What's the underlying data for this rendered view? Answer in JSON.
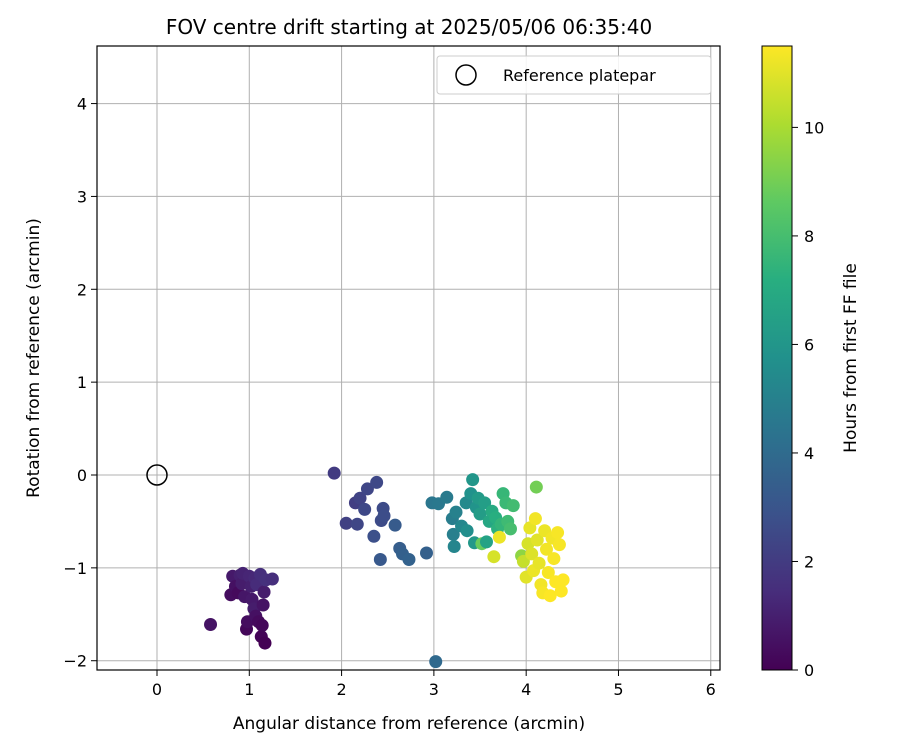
{
  "chart_data": {
    "type": "scatter",
    "title": "FOV centre drift starting at 2025/05/06 06:35:40",
    "xlabel": "Angular distance from reference (arcmin)",
    "ylabel": "Rotation from reference (arcmin)",
    "colorbar_label": "Hours from first FF file",
    "colormap": "viridis",
    "xlim": [
      -0.65,
      6.1
    ],
    "ylim": [
      -2.1,
      4.62
    ],
    "xticks": [
      "0",
      "1",
      "2",
      "3",
      "4",
      "5",
      "6"
    ],
    "yticks": [
      "−2",
      "−1",
      "0",
      "1",
      "2",
      "3",
      "4"
    ],
    "colorbar_range": [
      0,
      11.5
    ],
    "colorbar_ticks": [
      "0",
      "2",
      "4",
      "6",
      "8",
      "10"
    ],
    "grid": true,
    "legend": {
      "placement": "upper-right",
      "entries": [
        {
          "label": "Reference platepar",
          "marker": "open-circle",
          "color": "#000000"
        }
      ]
    },
    "reference_point": {
      "x": 0,
      "y": 0
    },
    "points": [
      {
        "x": 0.58,
        "y": -1.61,
        "t": 0.6
      },
      {
        "x": 0.8,
        "y": -1.29,
        "t": 0.4
      },
      {
        "x": 0.82,
        "y": -1.09,
        "t": 0.8
      },
      {
        "x": 0.85,
        "y": -1.2,
        "t": 0.5
      },
      {
        "x": 0.88,
        "y": -1.27,
        "t": 0.3
      },
      {
        "x": 0.9,
        "y": -1.08,
        "t": 1.0
      },
      {
        "x": 0.92,
        "y": -1.17,
        "t": 0.9
      },
      {
        "x": 0.93,
        "y": -1.06,
        "t": 1.1
      },
      {
        "x": 0.95,
        "y": -1.31,
        "t": 0.7
      },
      {
        "x": 0.97,
        "y": -1.66,
        "t": 0.2
      },
      {
        "x": 0.98,
        "y": -1.58,
        "t": 0.4
      },
      {
        "x": 1.0,
        "y": -1.09,
        "t": 1.2
      },
      {
        "x": 1.02,
        "y": -1.2,
        "t": 1.0
      },
      {
        "x": 1.03,
        "y": -1.34,
        "t": 0.8
      },
      {
        "x": 1.05,
        "y": -1.44,
        "t": 0.9
      },
      {
        "x": 1.06,
        "y": -1.11,
        "t": 1.3
      },
      {
        "x": 1.07,
        "y": -1.52,
        "t": 0.5
      },
      {
        "x": 1.08,
        "y": -1.18,
        "t": 1.4
      },
      {
        "x": 1.1,
        "y": -1.58,
        "t": 0.3
      },
      {
        "x": 1.12,
        "y": -1.07,
        "t": 1.5
      },
      {
        "x": 1.13,
        "y": -1.74,
        "t": 0.1
      },
      {
        "x": 1.14,
        "y": -1.62,
        "t": 0.2
      },
      {
        "x": 1.15,
        "y": -1.4,
        "t": 0.6
      },
      {
        "x": 1.16,
        "y": -1.26,
        "t": 0.9
      },
      {
        "x": 1.17,
        "y": -1.81,
        "t": 0.0
      },
      {
        "x": 1.18,
        "y": -1.13,
        "t": 1.6
      },
      {
        "x": 1.25,
        "y": -1.12,
        "t": 1.5
      },
      {
        "x": 1.92,
        "y": 0.02,
        "t": 2.0
      },
      {
        "x": 2.05,
        "y": -0.52,
        "t": 2.2
      },
      {
        "x": 2.15,
        "y": -0.3,
        "t": 2.1
      },
      {
        "x": 2.17,
        "y": -0.53,
        "t": 2.4
      },
      {
        "x": 2.2,
        "y": -0.25,
        "t": 2.3
      },
      {
        "x": 2.25,
        "y": -0.37,
        "t": 2.5
      },
      {
        "x": 2.28,
        "y": -0.15,
        "t": 2.4
      },
      {
        "x": 2.35,
        "y": -0.66,
        "t": 2.8
      },
      {
        "x": 2.38,
        "y": -0.08,
        "t": 2.5
      },
      {
        "x": 2.42,
        "y": -0.91,
        "t": 3.2
      },
      {
        "x": 2.43,
        "y": -0.49,
        "t": 2.6
      },
      {
        "x": 2.45,
        "y": -0.36,
        "t": 2.6
      },
      {
        "x": 2.46,
        "y": -0.44,
        "t": 2.7
      },
      {
        "x": 2.58,
        "y": -0.54,
        "t": 3.3
      },
      {
        "x": 2.63,
        "y": -0.79,
        "t": 3.4
      },
      {
        "x": 2.66,
        "y": -0.85,
        "t": 3.5
      },
      {
        "x": 2.73,
        "y": -0.91,
        "t": 3.6
      },
      {
        "x": 2.92,
        "y": -0.84,
        "t": 3.5
      },
      {
        "x": 2.98,
        "y": -0.3,
        "t": 4.5
      },
      {
        "x": 3.02,
        "y": -2.01,
        "t": 3.9
      },
      {
        "x": 3.05,
        "y": -0.31,
        "t": 4.6
      },
      {
        "x": 3.14,
        "y": -0.24,
        "t": 4.7
      },
      {
        "x": 3.2,
        "y": -0.47,
        "t": 4.8
      },
      {
        "x": 3.21,
        "y": -0.64,
        "t": 4.9
      },
      {
        "x": 3.22,
        "y": -0.77,
        "t": 5.2
      },
      {
        "x": 3.24,
        "y": -0.4,
        "t": 5.0
      },
      {
        "x": 3.3,
        "y": -0.55,
        "t": 5.3
      },
      {
        "x": 3.35,
        "y": -0.3,
        "t": 5.4
      },
      {
        "x": 3.36,
        "y": -0.6,
        "t": 5.6
      },
      {
        "x": 3.4,
        "y": -0.2,
        "t": 5.8
      },
      {
        "x": 3.42,
        "y": -0.05,
        "t": 6.0
      },
      {
        "x": 3.44,
        "y": -0.73,
        "t": 6.1
      },
      {
        "x": 3.46,
        "y": -0.35,
        "t": 5.9
      },
      {
        "x": 3.48,
        "y": -0.25,
        "t": 6.2
      },
      {
        "x": 3.5,
        "y": -0.42,
        "t": 6.3
      },
      {
        "x": 3.52,
        "y": -0.74,
        "t": 8.8
      },
      {
        "x": 3.55,
        "y": -0.3,
        "t": 6.4
      },
      {
        "x": 3.57,
        "y": -0.72,
        "t": 6.6
      },
      {
        "x": 3.6,
        "y": -0.5,
        "t": 6.8
      },
      {
        "x": 3.63,
        "y": -0.39,
        "t": 7.0
      },
      {
        "x": 3.65,
        "y": -0.88,
        "t": 10.8
      },
      {
        "x": 3.67,
        "y": -0.46,
        "t": 7.2
      },
      {
        "x": 3.69,
        "y": -0.58,
        "t": 7.3
      },
      {
        "x": 3.71,
        "y": -0.67,
        "t": 11.2
      },
      {
        "x": 3.73,
        "y": -0.53,
        "t": 7.5
      },
      {
        "x": 3.75,
        "y": -0.2,
        "t": 7.6
      },
      {
        "x": 3.78,
        "y": -0.3,
        "t": 7.7
      },
      {
        "x": 3.8,
        "y": -0.5,
        "t": 7.8
      },
      {
        "x": 3.83,
        "y": -0.58,
        "t": 8.0
      },
      {
        "x": 3.86,
        "y": -0.33,
        "t": 7.9
      },
      {
        "x": 3.95,
        "y": -0.87,
        "t": 9.5
      },
      {
        "x": 3.97,
        "y": -0.93,
        "t": 10.5
      },
      {
        "x": 4.0,
        "y": -1.1,
        "t": 11.0
      },
      {
        "x": 4.02,
        "y": -0.74,
        "t": 10.8
      },
      {
        "x": 4.04,
        "y": -0.57,
        "t": 11.1
      },
      {
        "x": 4.06,
        "y": -0.85,
        "t": 10.9
      },
      {
        "x": 4.08,
        "y": -1.03,
        "t": 11.2
      },
      {
        "x": 4.1,
        "y": -0.47,
        "t": 11.3
      },
      {
        "x": 4.11,
        "y": -0.13,
        "t": 9.0
      },
      {
        "x": 4.12,
        "y": -0.7,
        "t": 11.0
      },
      {
        "x": 4.14,
        "y": -0.95,
        "t": 11.1
      },
      {
        "x": 4.16,
        "y": -1.18,
        "t": 11.3
      },
      {
        "x": 4.18,
        "y": -1.27,
        "t": 11.4
      },
      {
        "x": 4.2,
        "y": -0.6,
        "t": 11.2
      },
      {
        "x": 4.22,
        "y": -0.8,
        "t": 11.3
      },
      {
        "x": 4.24,
        "y": -1.05,
        "t": 11.4
      },
      {
        "x": 4.26,
        "y": -1.3,
        "t": 11.5
      },
      {
        "x": 4.28,
        "y": -0.68,
        "t": 11.3
      },
      {
        "x": 4.3,
        "y": -0.9,
        "t": 11.4
      },
      {
        "x": 4.32,
        "y": -1.15,
        "t": 11.5
      },
      {
        "x": 4.34,
        "y": -0.62,
        "t": 11.4
      },
      {
        "x": 4.36,
        "y": -0.75,
        "t": 11.4
      },
      {
        "x": 4.38,
        "y": -1.25,
        "t": 11.5
      },
      {
        "x": 4.4,
        "y": -1.13,
        "t": 11.5
      }
    ]
  }
}
